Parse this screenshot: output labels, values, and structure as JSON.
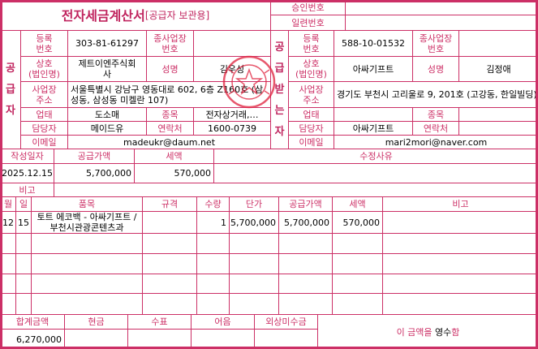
{
  "header": {
    "title": "전자세금계산서",
    "subtitle": "[공급자 보관용]",
    "approval_label": "승인번호",
    "approval_value": "",
    "serial_label": "일련번호",
    "serial_value": ""
  },
  "supplier": {
    "section_label": "공급자",
    "reg_no_label": "등록\n번호",
    "reg_no": "303-81-61297",
    "sub_biz_label": "종사업장\n번호",
    "sub_biz": "",
    "name_label": "상호\n(법인명)",
    "company": "제트이엔주식회\n사",
    "rep_label": "성명",
    "rep": "김우성",
    "address_label": "사업장\n주소",
    "address": "서울특별시 강남구 영동대로 602, 6층 Z160호 (삼성동, 삼성동 미켈란 107)",
    "biz_type_label": "업태",
    "biz_type": "도소매",
    "item_label": "종목",
    "item": "전자상거래,…",
    "contact_label": "담당자",
    "contact": "메이드유",
    "phone_label": "연락처",
    "phone": "1600-0739",
    "email_label": "이메일",
    "email": "madeukr@daum.net",
    "stamp_color": "#e0203c"
  },
  "buyer": {
    "section_label": "공급받는자",
    "reg_no_label": "등록\n번호",
    "reg_no": "588-10-01532",
    "sub_biz_label": "종사업장\n번호",
    "sub_biz": "",
    "name_label": "상호\n(법인명)",
    "company": "아싸기프트",
    "rep_label": "성명",
    "rep": "김정애",
    "address_label": "사업장\n주소",
    "address": "경기도 부천시 고리울로 9, 201호 (고강동, 한일빌딩)",
    "biz_type_label": "업태",
    "biz_type": "",
    "item_label": "종목",
    "item": "",
    "contact_label": "담당자",
    "contact": "아싸기프트",
    "phone_label": "연락처",
    "phone": "",
    "email_label": "이메일",
    "email": "mari2mori@naver.com"
  },
  "summary": {
    "date_label": "작성일자",
    "supply_label": "공급가액",
    "tax_label": "세액",
    "reason_label": "수정사유",
    "date": "2025.12.15",
    "supply": "5,700,000",
    "tax": "570,000",
    "reason": "",
    "note_label": "비고",
    "note": ""
  },
  "items": {
    "headers": [
      "월",
      "일",
      "품목",
      "규격",
      "수량",
      "단가",
      "공급가액",
      "세액",
      "비고"
    ],
    "rows": [
      [
        "12",
        "15",
        "토트 에코백 - 아싸기프트 / 부천시관광콘텐츠과",
        "",
        "1",
        "5,700,000",
        "5,700,000",
        "570,000",
        ""
      ],
      [
        "",
        "",
        "",
        "",
        "",
        "",
        "",
        "",
        ""
      ],
      [
        "",
        "",
        "",
        "",
        "",
        "",
        "",
        "",
        ""
      ],
      [
        "",
        "",
        "",
        "",
        "",
        "",
        "",
        "",
        ""
      ],
      [
        "",
        "",
        "",
        "",
        "",
        "",
        "",
        "",
        ""
      ]
    ]
  },
  "footer": {
    "headers": [
      "합계금액",
      "현금",
      "수표",
      "어음",
      "외상미수금"
    ],
    "values": [
      "6,270,000",
      "",
      "",
      "",
      ""
    ],
    "receipt_prefix": "이 금액을 ",
    "receipt_mark": "영수",
    "receipt_suffix": "함"
  },
  "colors": {
    "line": "#cc2f66",
    "label": "#cc2f66"
  }
}
